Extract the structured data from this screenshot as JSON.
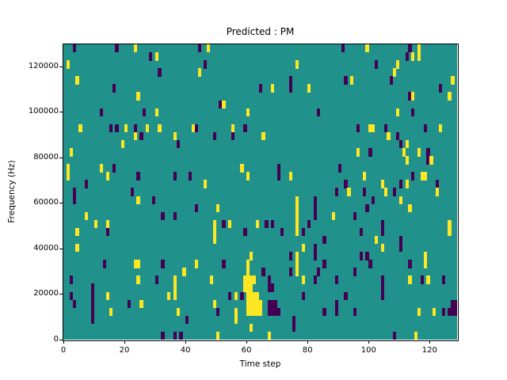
{
  "chart_data": {
    "type": "heatmap",
    "title": "Predicted : PM",
    "xlabel": "Time step",
    "ylabel": "Frequency (Hz)",
    "x_ticks": [
      0,
      20,
      40,
      60,
      80,
      100,
      120
    ],
    "y_ticks": [
      0,
      20000,
      40000,
      60000,
      80000,
      100000,
      120000
    ],
    "x_range": [
      0,
      129
    ],
    "y_range": [
      0,
      129700
    ],
    "grid": {
      "cols": 129,
      "rows": 37
    },
    "legend": "none",
    "colors": {
      "background": "#21918c",
      "low": "#440154",
      "high": "#fde725",
      "frame": "#000000",
      "figure_bg": "#ffffff"
    },
    "cells": {
      "dark": [
        [
          3,
          0
        ],
        [
          17,
          0
        ],
        [
          28,
          1
        ],
        [
          31,
          3
        ],
        [
          16,
          5
        ],
        [
          12,
          8
        ],
        [
          26,
          8
        ],
        [
          15,
          10
        ],
        [
          17,
          10
        ],
        [
          23,
          10
        ],
        [
          25,
          11
        ],
        [
          44,
          0
        ],
        [
          46,
          2
        ],
        [
          64,
          5
        ],
        [
          74,
          4
        ],
        [
          74,
          5
        ],
        [
          51,
          7
        ],
        [
          83,
          8
        ],
        [
          43,
          10
        ],
        [
          59,
          10
        ],
        [
          49,
          11
        ],
        [
          55,
          11
        ],
        [
          91,
          0
        ],
        [
          113,
          0
        ],
        [
          112,
          1
        ],
        [
          102,
          2
        ],
        [
          92,
          4
        ],
        [
          107,
          4
        ],
        [
          123,
          5
        ],
        [
          113,
          6
        ],
        [
          114,
          8
        ],
        [
          96,
          10
        ],
        [
          105,
          10
        ],
        [
          118,
          10
        ],
        [
          109,
          11
        ],
        [
          37,
          12
        ],
        [
          16,
          15
        ],
        [
          24,
          16
        ],
        [
          36,
          16
        ],
        [
          41,
          16
        ],
        [
          7,
          17
        ],
        [
          3,
          18
        ],
        [
          22,
          18
        ],
        [
          3,
          19
        ],
        [
          29,
          19
        ],
        [
          32,
          21
        ],
        [
          36,
          21
        ],
        [
          14,
          23
        ],
        [
          70,
          15
        ],
        [
          70,
          16
        ],
        [
          43,
          20
        ],
        [
          82,
          19
        ],
        [
          82,
          20
        ],
        [
          82,
          21
        ],
        [
          52,
          22
        ],
        [
          66,
          22
        ],
        [
          68,
          22
        ],
        [
          80,
          22
        ],
        [
          59,
          23
        ],
        [
          71,
          23
        ],
        [
          78,
          23
        ],
        [
          85,
          24
        ],
        [
          110,
          12
        ],
        [
          100,
          13
        ],
        [
          119,
          13
        ],
        [
          119,
          14
        ],
        [
          90,
          15
        ],
        [
          114,
          16
        ],
        [
          92,
          17
        ],
        [
          110,
          17
        ],
        [
          122,
          17
        ],
        [
          89,
          18
        ],
        [
          98,
          18
        ],
        [
          108,
          18
        ],
        [
          101,
          19
        ],
        [
          99,
          20
        ],
        [
          95,
          21
        ],
        [
          104,
          22
        ],
        [
          97,
          23
        ],
        [
          104,
          23
        ],
        [
          110,
          24
        ],
        [
          13,
          27
        ],
        [
          32,
          27
        ],
        [
          2,
          29
        ],
        [
          30,
          29
        ],
        [
          9,
          30
        ],
        [
          2,
          31
        ],
        [
          9,
          31
        ],
        [
          9,
          32
        ],
        [
          3,
          32
        ],
        [
          21,
          32
        ],
        [
          9,
          33
        ],
        [
          9,
          34
        ],
        [
          40,
          34
        ],
        [
          36,
          36
        ],
        [
          82,
          25
        ],
        [
          74,
          26
        ],
        [
          82,
          26
        ],
        [
          52,
          27
        ],
        [
          85,
          27
        ],
        [
          65,
          28
        ],
        [
          74,
          28
        ],
        [
          83,
          28
        ],
        [
          67,
          29
        ],
        [
          82,
          29
        ],
        [
          67,
          30
        ],
        [
          68,
          30
        ],
        [
          54,
          31
        ],
        [
          58,
          31
        ],
        [
          78,
          31
        ],
        [
          67,
          32
        ],
        [
          68,
          32
        ],
        [
          69,
          32
        ],
        [
          50,
          33
        ],
        [
          67,
          33
        ],
        [
          68,
          33
        ],
        [
          69,
          33
        ],
        [
          70,
          33
        ],
        [
          85,
          33
        ],
        [
          75,
          34
        ],
        [
          75,
          35
        ],
        [
          110,
          25
        ],
        [
          97,
          26
        ],
        [
          99,
          26
        ],
        [
          100,
          27
        ],
        [
          113,
          27
        ],
        [
          95,
          28
        ],
        [
          89,
          29
        ],
        [
          104,
          29
        ],
        [
          117,
          29
        ],
        [
          124,
          29
        ],
        [
          104,
          30
        ],
        [
          92,
          31
        ],
        [
          104,
          31
        ],
        [
          89,
          32
        ],
        [
          127,
          32
        ],
        [
          128,
          32
        ],
        [
          89,
          33
        ],
        [
          95,
          33
        ],
        [
          124,
          33
        ],
        [
          126,
          33
        ],
        [
          127,
          33
        ],
        [
          128,
          33
        ],
        [
          108,
          36
        ],
        [
          32,
          36
        ],
        [
          38,
          36
        ]
      ],
      "yellow": [
        [
          23,
          0
        ],
        [
          30,
          1
        ],
        [
          1,
          2
        ],
        [
          4,
          4
        ],
        [
          24,
          6
        ],
        [
          30,
          8
        ],
        [
          5,
          10
        ],
        [
          20,
          10
        ],
        [
          27,
          10
        ],
        [
          31,
          10
        ],
        [
          42,
          10
        ],
        [
          23,
          11
        ],
        [
          36,
          11
        ],
        [
          47,
          0
        ],
        [
          76,
          2
        ],
        [
          44,
          3
        ],
        [
          68,
          5
        ],
        [
          80,
          5
        ],
        [
          52,
          7
        ],
        [
          60,
          8
        ],
        [
          55,
          10
        ],
        [
          65,
          11
        ],
        [
          99,
          0
        ],
        [
          116,
          0
        ],
        [
          114,
          1
        ],
        [
          116,
          1
        ],
        [
          109,
          2
        ],
        [
          108,
          3
        ],
        [
          94,
          4
        ],
        [
          127,
          4
        ],
        [
          114,
          6
        ],
        [
          126,
          6
        ],
        [
          109,
          8
        ],
        [
          100,
          10
        ],
        [
          101,
          10
        ],
        [
          123,
          10
        ],
        [
          106,
          11
        ],
        [
          19,
          12
        ],
        [
          2,
          13
        ],
        [
          1,
          15
        ],
        [
          12,
          15
        ],
        [
          1,
          16
        ],
        [
          14,
          16
        ],
        [
          24,
          19
        ],
        [
          7,
          21
        ],
        [
          10,
          22
        ],
        [
          14,
          22
        ],
        [
          4,
          23
        ],
        [
          58,
          15
        ],
        [
          60,
          16
        ],
        [
          74,
          16
        ],
        [
          46,
          17
        ],
        [
          76,
          19
        ],
        [
          50,
          20
        ],
        [
          76,
          20
        ],
        [
          76,
          21
        ],
        [
          54,
          22
        ],
        [
          63,
          22
        ],
        [
          76,
          22
        ],
        [
          76,
          23
        ],
        [
          49,
          22
        ],
        [
          49,
          23
        ],
        [
          49,
          24
        ],
        [
          112,
          12
        ],
        [
          96,
          13
        ],
        [
          111,
          13
        ],
        [
          116,
          13
        ],
        [
          112,
          14
        ],
        [
          120,
          14
        ],
        [
          98,
          16
        ],
        [
          117,
          16
        ],
        [
          118,
          16
        ],
        [
          104,
          17
        ],
        [
          112,
          17
        ],
        [
          93,
          18
        ],
        [
          105,
          18
        ],
        [
          122,
          18
        ],
        [
          110,
          19
        ],
        [
          113,
          20
        ],
        [
          88,
          21
        ],
        [
          126,
          22
        ],
        [
          126,
          23
        ],
        [
          102,
          24
        ],
        [
          4,
          25
        ],
        [
          23,
          27
        ],
        [
          24,
          27
        ],
        [
          39,
          28
        ],
        [
          24,
          29
        ],
        [
          36,
          29
        ],
        [
          36,
          30
        ],
        [
          14,
          31
        ],
        [
          34,
          31
        ],
        [
          36,
          31
        ],
        [
          25,
          32
        ],
        [
          15,
          33
        ],
        [
          37,
          33
        ],
        [
          78,
          25
        ],
        [
          61,
          26
        ],
        [
          76,
          26
        ],
        [
          43,
          27
        ],
        [
          60,
          27
        ],
        [
          76,
          27
        ],
        [
          60,
          28
        ],
        [
          76,
          28
        ],
        [
          48,
          29
        ],
        [
          78,
          29
        ],
        [
          59,
          29
        ],
        [
          60,
          29
        ],
        [
          61,
          29
        ],
        [
          62,
          29
        ],
        [
          59,
          30
        ],
        [
          60,
          30
        ],
        [
          61,
          30
        ],
        [
          56,
          31
        ],
        [
          60,
          31
        ],
        [
          61,
          31
        ],
        [
          62,
          31
        ],
        [
          63,
          31
        ],
        [
          49,
          32
        ],
        [
          60,
          32
        ],
        [
          61,
          32
        ],
        [
          62,
          32
        ],
        [
          63,
          32
        ],
        [
          64,
          32
        ],
        [
          56,
          33
        ],
        [
          60,
          33
        ],
        [
          61,
          33
        ],
        [
          62,
          33
        ],
        [
          63,
          33
        ],
        [
          64,
          33
        ],
        [
          56,
          34
        ],
        [
          61,
          35
        ],
        [
          50,
          36
        ],
        [
          67,
          36
        ],
        [
          104,
          25
        ],
        [
          118,
          26
        ],
        [
          118,
          27
        ],
        [
          113,
          29
        ],
        [
          119,
          29
        ],
        [
          116,
          33
        ],
        [
          121,
          33
        ],
        [
          115,
          36
        ]
      ]
    }
  }
}
